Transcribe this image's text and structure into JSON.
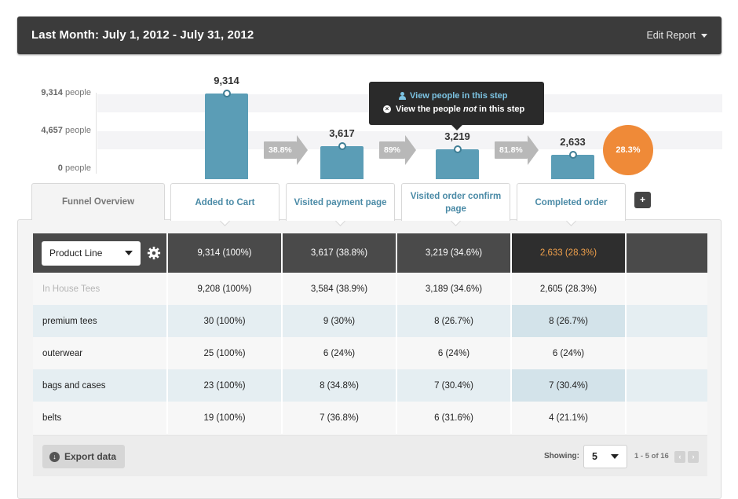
{
  "header": {
    "title": "Last Month: July 1, 2012 - July 31, 2012",
    "edit_label": "Edit Report"
  },
  "chart_data": {
    "type": "bar",
    "categories": [
      "Added to Cart",
      "Visited payment page",
      "Visited order confirm page",
      "Completed order"
    ],
    "values": [
      9314,
      3617,
      3219,
      2633
    ],
    "value_labels": [
      "9,314",
      "3,617",
      "3,219",
      "2,633"
    ],
    "y_ticks": [
      {
        "value": "9,314",
        "unit": "people"
      },
      {
        "value": "4,657",
        "unit": "people"
      },
      {
        "value": "0",
        "unit": "people"
      }
    ],
    "ylim": [
      0,
      9314
    ],
    "conversion_rates": [
      "38.8%",
      "89%",
      "81.8%"
    ],
    "overall_conversion": "28.3%"
  },
  "tooltip": {
    "line1": "View people in this step",
    "line2_pre": "View the people ",
    "line2_em": "not",
    "line2_post": " in this step"
  },
  "tabs": [
    {
      "label": "Funnel Overview"
    },
    {
      "label": "Added to Cart"
    },
    {
      "label": "Visited payment page"
    },
    {
      "label": "Visited order confirm page"
    },
    {
      "label": "Completed order"
    }
  ],
  "add_tab_label": "+",
  "table": {
    "segment_select": "Product Line",
    "header": [
      "9,314 (100%)",
      "3,617 (38.8%)",
      "3,219 (34.6%)",
      "2,633 (28.3%)",
      ""
    ],
    "rows": [
      {
        "name": "In House Tees",
        "cells": [
          "9,208 (100%)",
          "3,584 (38.9%)",
          "3,189 (34.6%)",
          "2,605 (28.3%)",
          ""
        ]
      },
      {
        "name": "premium tees",
        "cells": [
          "30 (100%)",
          "9 (30%)",
          "8 (26.7%)",
          "8 (26.7%)",
          ""
        ]
      },
      {
        "name": "outerwear",
        "cells": [
          "25 (100%)",
          "6 (24%)",
          "6 (24%)",
          "6 (24%)",
          ""
        ]
      },
      {
        "name": "bags and cases",
        "cells": [
          "23 (100%)",
          "8 (34.8%)",
          "7 (30.4%)",
          "7 (30.4%)",
          ""
        ]
      },
      {
        "name": "belts",
        "cells": [
          "19 (100%)",
          "7 (36.8%)",
          "6 (31.6%)",
          "4 (21.1%)",
          ""
        ]
      }
    ]
  },
  "footer": {
    "export_label": "Export data",
    "showing_label": "Showing:",
    "page_size": "5",
    "range": "1 - 5 of 16",
    "prev": "‹",
    "next": "›"
  },
  "colors": {
    "bar": "#5b9db6",
    "accent_orange": "#ef8a38",
    "header_bg": "#3b3b3b"
  }
}
